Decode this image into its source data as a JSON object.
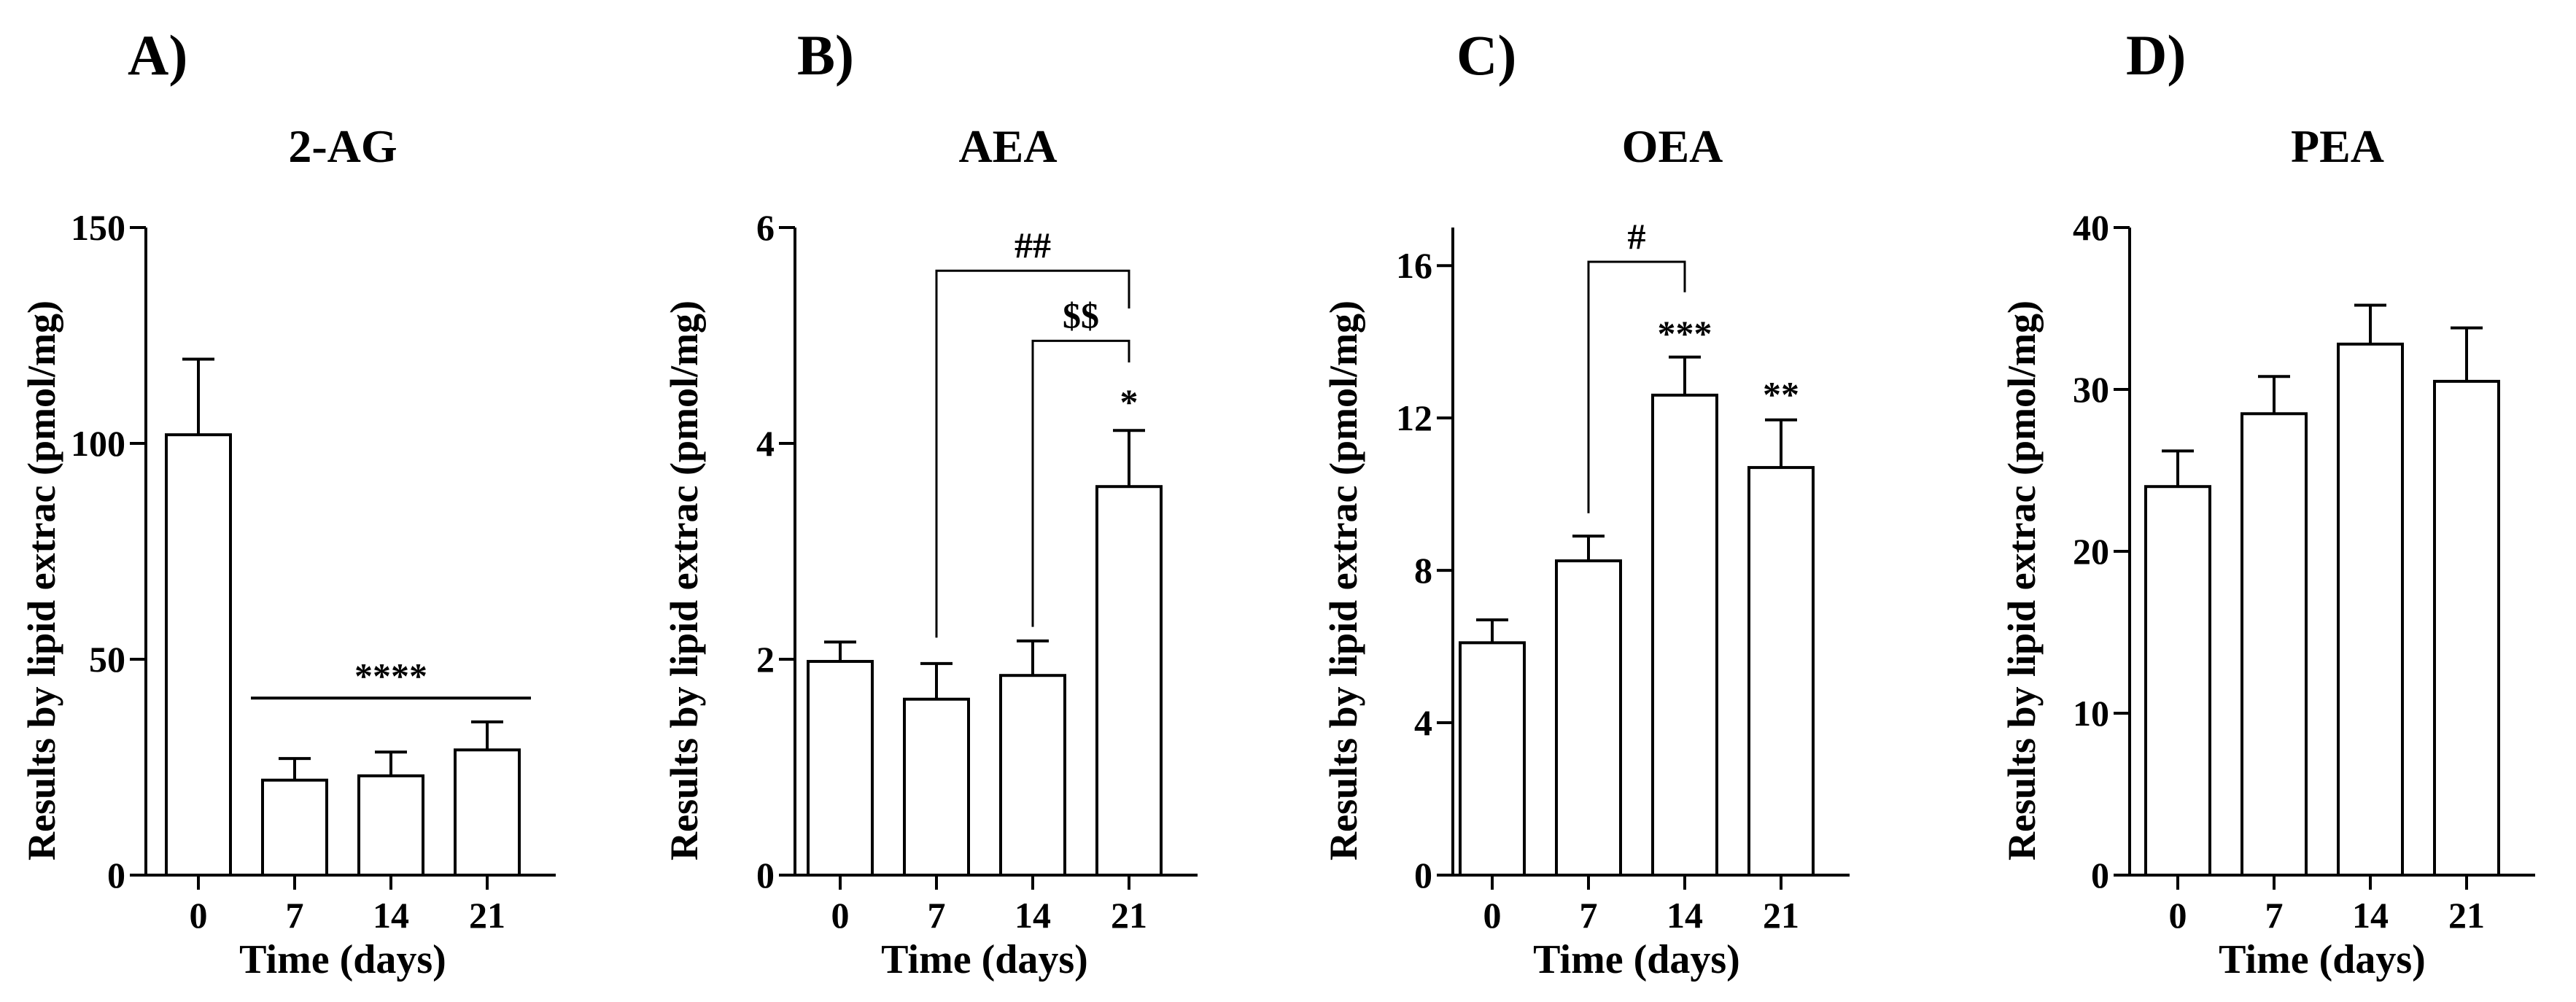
{
  "chart_data": [
    {
      "type": "bar",
      "panel": "A)",
      "title": "2-AG",
      "xlabel": "Time (days)",
      "ylabel": "Results by lipid extrac (pmol/mg)",
      "categories": [
        "0",
        "7",
        "14",
        "21"
      ],
      "values": [
        102,
        22,
        23,
        29
      ],
      "error": [
        17.5,
        5,
        5.5,
        6.5
      ],
      "ylim": [
        0,
        150
      ],
      "yticks": [
        0,
        50,
        100,
        150
      ],
      "annotations": [
        {
          "text": "****",
          "type": "line",
          "from": "7",
          "to": "21",
          "y": 41
        }
      ]
    },
    {
      "type": "bar",
      "panel": "B)",
      "title": "AEA",
      "xlabel": "Time (days)",
      "ylabel": "Results by lipid extrac (pmol/mg)",
      "categories": [
        "0",
        "7",
        "14",
        "21"
      ],
      "values": [
        1.98,
        1.63,
        1.85,
        3.6
      ],
      "error": [
        0.18,
        0.33,
        0.32,
        0.52
      ],
      "ylim": [
        0,
        6
      ],
      "yticks": [
        0,
        2,
        4,
        6
      ],
      "annotations": [
        {
          "text": "##",
          "type": "bracket",
          "from": "7",
          "to": "21",
          "y": 5.6,
          "drop_from": 2.2,
          "drop_to": 5.25
        },
        {
          "text": "$$",
          "type": "bracket",
          "from": "14",
          "to": "21",
          "y": 4.95,
          "drop_from": 2.3,
          "drop_to": 4.75
        },
        {
          "text": "*",
          "type": "star",
          "at": "21",
          "y": 4.27
        }
      ]
    },
    {
      "type": "bar",
      "panel": "C)",
      "title": "OEA",
      "xlabel": "Time (days)",
      "ylabel": "Results by lipid extrac (pmol/mg)",
      "categories": [
        "0",
        "7",
        "14",
        "21"
      ],
      "values": [
        6.1,
        8.25,
        12.6,
        10.7
      ],
      "error": [
        0.6,
        0.65,
        1.0,
        1.25
      ],
      "ylim": [
        0,
        17
      ],
      "yticks": [
        0,
        4,
        8,
        12,
        16
      ],
      "annotations": [
        {
          "text": "#",
          "type": "bracket",
          "from": "7",
          "to": "14",
          "y": 16.1,
          "drop_from": 9.5,
          "drop_to": 15.3
        },
        {
          "text": "***",
          "type": "star",
          "at": "14",
          "y": 13.9
        },
        {
          "text": "**",
          "type": "star",
          "at": "21",
          "y": 12.3
        }
      ]
    },
    {
      "type": "bar",
      "panel": "D)",
      "title": "PEA",
      "xlabel": "Time (days)",
      "ylabel": "Results by lipid extrac (pmol/mg)",
      "categories": [
        "0",
        "7",
        "14",
        "21"
      ],
      "values": [
        24,
        28.5,
        32.8,
        30.5
      ],
      "error": [
        2.2,
        2.3,
        2.4,
        3.3
      ],
      "ylim": [
        0,
        40
      ],
      "yticks": [
        0,
        10,
        20,
        30,
        40
      ],
      "annotations": []
    }
  ]
}
